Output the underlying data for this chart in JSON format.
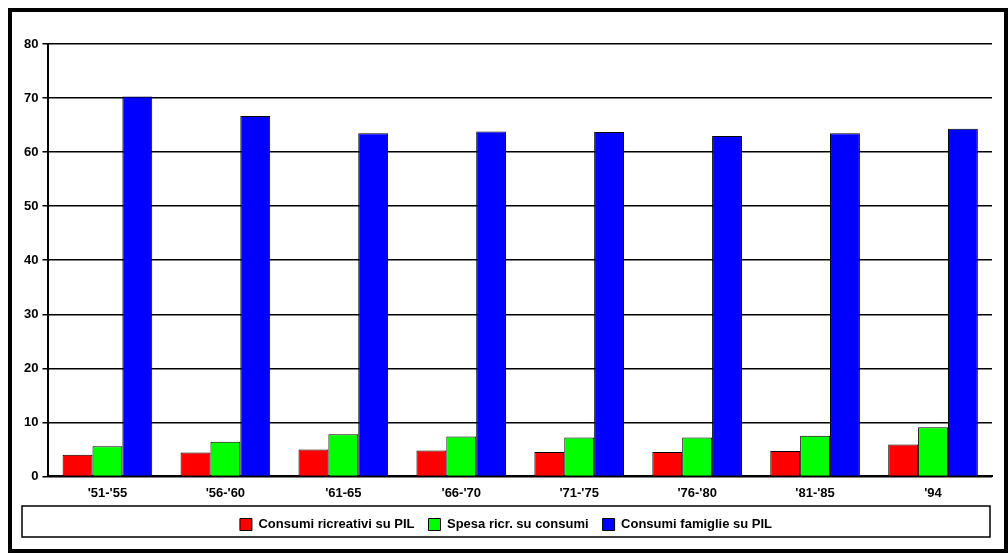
{
  "chart_data": {
    "type": "bar",
    "categories": [
      "'51-'55",
      "'56-'60",
      "'61-65",
      "'66-'70",
      "'71-'75",
      "'76-'80",
      "'81-'85",
      "'94"
    ],
    "series": [
      {
        "name": "Consumi ricreativi su PIL",
        "color": "#ff0000",
        "values": [
          4.0,
          4.4,
          5.0,
          4.8,
          4.5,
          4.5,
          4.7,
          5.9
        ]
      },
      {
        "name": "Spesa ricr. su consumi",
        "color": "#00ff00",
        "values": [
          5.6,
          6.4,
          7.8,
          7.4,
          7.2,
          7.2,
          7.5,
          9.1
        ]
      },
      {
        "name": "Consumi famiglie su PIL",
        "color": "#0000ff",
        "values": [
          70.3,
          66.7,
          63.5,
          63.8,
          63.7,
          63.0,
          63.5,
          64.3
        ]
      }
    ],
    "ylim": [
      0,
      80
    ],
    "yticks": [
      0,
      10,
      20,
      30,
      40,
      50,
      60,
      70,
      80
    ],
    "grid": "y",
    "legend": "bottom"
  }
}
